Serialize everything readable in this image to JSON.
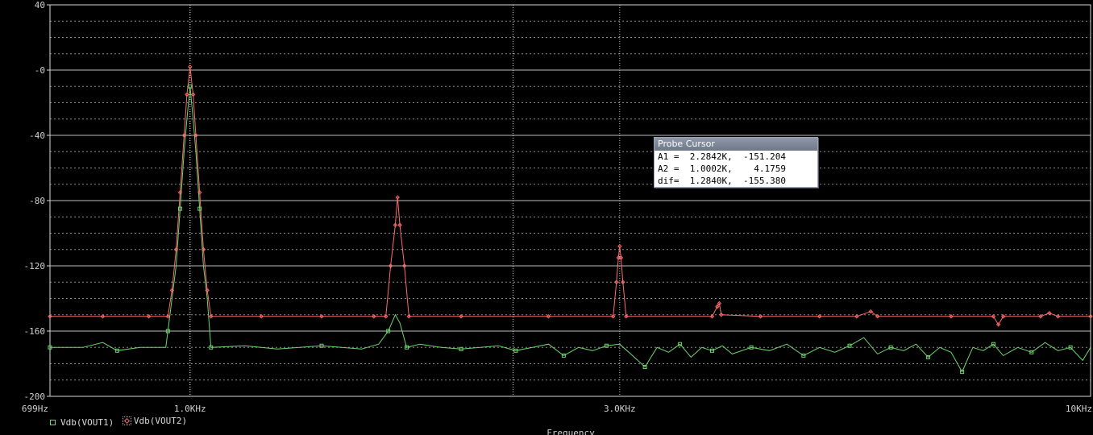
{
  "chart_data": {
    "type": "line",
    "xscale": "log",
    "xlim": [
      699,
      10000
    ],
    "ylim": [
      -200,
      40
    ],
    "xlabel": "Frequency",
    "ylabel": "",
    "x_ticks": [
      {
        "value": 699,
        "label": "699Hz"
      },
      {
        "value": 1000,
        "label": "1.0KHz"
      },
      {
        "value": 3000,
        "label": "3.0KHz"
      },
      {
        "value": 10000,
        "label": "10KHz"
      }
    ],
    "y_ticks": [
      {
        "value": 40,
        "label": "40"
      },
      {
        "value": 0,
        "label": "-0"
      },
      {
        "value": -40,
        "label": "-40"
      },
      {
        "value": -80,
        "label": "-80"
      },
      {
        "value": -120,
        "label": "-120"
      },
      {
        "value": -160,
        "label": "-160"
      },
      {
        "value": -200,
        "label": "-200"
      }
    ],
    "grid": true,
    "series": [
      {
        "name": "Vdb(VOUT1)",
        "color": "#6cd66c",
        "marker": "square",
        "points": [
          [
            699,
            -170
          ],
          [
            760,
            -170
          ],
          [
            800,
            -167
          ],
          [
            830,
            -172
          ],
          [
            880,
            -170
          ],
          [
            940,
            -170
          ],
          [
            945,
            -160
          ],
          [
            955,
            -140
          ],
          [
            965,
            -120
          ],
          [
            975,
            -85
          ],
          [
            985,
            -50
          ],
          [
            992,
            -30
          ],
          [
            1000,
            -10
          ],
          [
            1008,
            -30
          ],
          [
            1015,
            -50
          ],
          [
            1025,
            -85
          ],
          [
            1035,
            -120
          ],
          [
            1045,
            -140
          ],
          [
            1055,
            -170
          ],
          [
            1150,
            -169
          ],
          [
            1250,
            -171
          ],
          [
            1400,
            -169
          ],
          [
            1550,
            -171
          ],
          [
            1620,
            -168
          ],
          [
            1660,
            -160
          ],
          [
            1690,
            -150
          ],
          [
            1710,
            -155
          ],
          [
            1740,
            -170
          ],
          [
            1800,
            -168
          ],
          [
            1900,
            -170
          ],
          [
            2000,
            -171
          ],
          [
            2100,
            -170
          ],
          [
            2200,
            -169
          ],
          [
            2300,
            -172
          ],
          [
            2400,
            -170
          ],
          [
            2500,
            -168
          ],
          [
            2600,
            -175
          ],
          [
            2700,
            -170
          ],
          [
            2800,
            -172
          ],
          [
            2900,
            -169
          ],
          [
            3000,
            -168
          ],
          [
            3100,
            -175
          ],
          [
            3200,
            -182
          ],
          [
            3300,
            -170
          ],
          [
            3400,
            -173
          ],
          [
            3500,
            -168
          ],
          [
            3600,
            -176
          ],
          [
            3700,
            -170
          ],
          [
            3800,
            -172
          ],
          [
            3900,
            -169
          ],
          [
            4000,
            -174
          ],
          [
            4200,
            -170
          ],
          [
            4400,
            -172
          ],
          [
            4600,
            -168
          ],
          [
            4800,
            -175
          ],
          [
            5000,
            -170
          ],
          [
            5200,
            -173
          ],
          [
            5400,
            -169
          ],
          [
            5600,
            -164
          ],
          [
            5800,
            -174
          ],
          [
            6000,
            -170
          ],
          [
            6200,
            -172
          ],
          [
            6400,
            -168
          ],
          [
            6600,
            -176
          ],
          [
            6800,
            -170
          ],
          [
            7000,
            -173
          ],
          [
            7200,
            -185
          ],
          [
            7400,
            -170
          ],
          [
            7600,
            -172
          ],
          [
            7800,
            -168
          ],
          [
            8000,
            -175
          ],
          [
            8300,
            -170
          ],
          [
            8600,
            -173
          ],
          [
            8900,
            -167
          ],
          [
            9200,
            -172
          ],
          [
            9500,
            -170
          ],
          [
            9800,
            -178
          ],
          [
            10000,
            -170
          ]
        ]
      },
      {
        "name": "Vdb(VOUT2)",
        "color": "#ff6b6b",
        "marker": "diamond",
        "points": [
          [
            699,
            -151
          ],
          [
            800,
            -151
          ],
          [
            900,
            -151
          ],
          [
            945,
            -151
          ],
          [
            955,
            -135
          ],
          [
            965,
            -110
          ],
          [
            975,
            -75
          ],
          [
            985,
            -40
          ],
          [
            992,
            -15
          ],
          [
            1000,
            2
          ],
          [
            1008,
            -15
          ],
          [
            1015,
            -40
          ],
          [
            1025,
            -75
          ],
          [
            1035,
            -110
          ],
          [
            1045,
            -135
          ],
          [
            1055,
            -151
          ],
          [
            1200,
            -151
          ],
          [
            1400,
            -151
          ],
          [
            1600,
            -151
          ],
          [
            1650,
            -151
          ],
          [
            1670,
            -120
          ],
          [
            1690,
            -95
          ],
          [
            1700,
            -78
          ],
          [
            1710,
            -95
          ],
          [
            1730,
            -120
          ],
          [
            1750,
            -151
          ],
          [
            2000,
            -151
          ],
          [
            2500,
            -151
          ],
          [
            2950,
            -151
          ],
          [
            2975,
            -130
          ],
          [
            2990,
            -115
          ],
          [
            3000,
            -108
          ],
          [
            3010,
            -115
          ],
          [
            3025,
            -130
          ],
          [
            3050,
            -151
          ],
          [
            3800,
            -151
          ],
          [
            3850,
            -145
          ],
          [
            3870,
            -143
          ],
          [
            3890,
            -150
          ],
          [
            4300,
            -151
          ],
          [
            5000,
            -151
          ],
          [
            5500,
            -151
          ],
          [
            5700,
            -148
          ],
          [
            5800,
            -151
          ],
          [
            7000,
            -151
          ],
          [
            7800,
            -151
          ],
          [
            7900,
            -156
          ],
          [
            8000,
            -151
          ],
          [
            8800,
            -151
          ],
          [
            9000,
            -149
          ],
          [
            9200,
            -151
          ],
          [
            10000,
            -151
          ]
        ]
      }
    ],
    "cursor_lines": [
      1000,
      2284.2
    ]
  },
  "probe_cursor": {
    "title": "Probe Cursor",
    "rows": [
      "A1 =  2.2842K,  -151.204",
      "A2 =  1.0002K,    4.1759",
      "dif=  1.2840K,  -155.380"
    ]
  },
  "legend": {
    "items": [
      "Vdb(VOUT1)",
      "Vdb(VOUT2)"
    ]
  }
}
